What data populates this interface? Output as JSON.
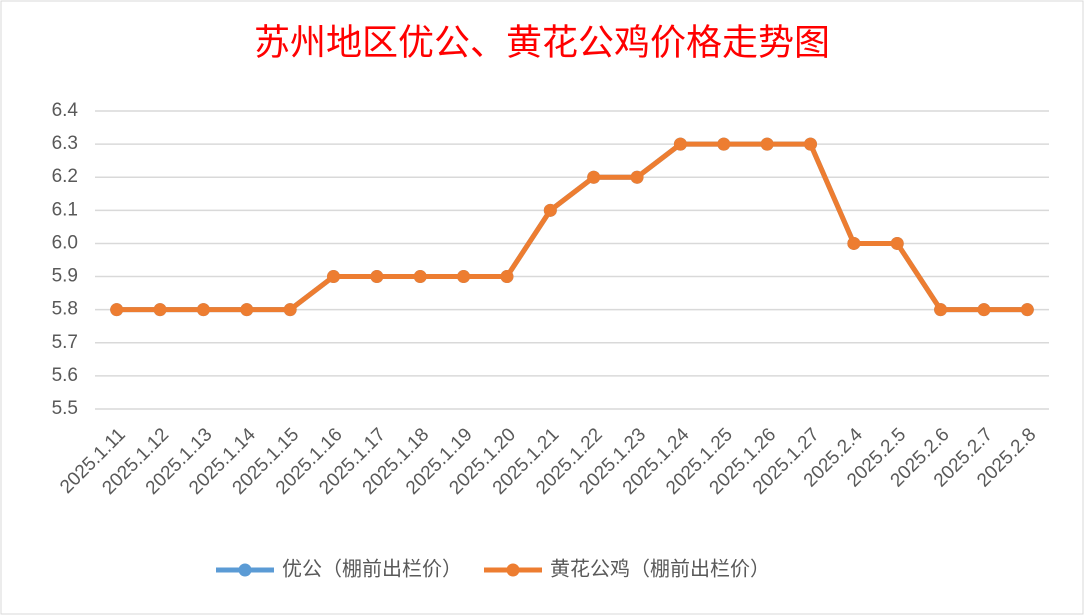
{
  "chart_data": {
    "type": "line",
    "title": "苏州地区优公、黄花公鸡价格走势图",
    "categories": [
      "2025.1.11",
      "2025.1.12",
      "2025.1.13",
      "2025.1.14",
      "2025.1.15",
      "2025.1.16",
      "2025.1.17",
      "2025.1.18",
      "2025.1.19",
      "2025.1.20",
      "2025.1.21",
      "2025.1.22",
      "2025.1.23",
      "2025.1.24",
      "2025.1.25",
      "2025.1.26",
      "2025.1.27",
      "2025.2.4",
      "2025.2.5",
      "2025.2.6",
      "2025.2.7",
      "2025.2.8"
    ],
    "series": [
      {
        "name": "优公（棚前出栏价）",
        "color": "#5b9bd5",
        "values": [
          5.8,
          5.8,
          5.8,
          5.8,
          5.8,
          5.9,
          5.9,
          5.9,
          5.9,
          5.9,
          6.1,
          6.2,
          6.2,
          6.3,
          6.3,
          6.3,
          6.3,
          6.0,
          6.0,
          5.8,
          5.8,
          5.8
        ]
      },
      {
        "name": "黄花公鸡（棚前出栏价）",
        "color": "#ed7d31",
        "values": [
          5.8,
          5.8,
          5.8,
          5.8,
          5.8,
          5.9,
          5.9,
          5.9,
          5.9,
          5.9,
          6.1,
          6.2,
          6.2,
          6.3,
          6.3,
          6.3,
          6.3,
          6.0,
          6.0,
          5.8,
          5.8,
          5.8
        ]
      }
    ],
    "ylim": [
      5.5,
      6.4
    ],
    "yticks": [
      5.5,
      5.6,
      5.7,
      5.8,
      5.9,
      {
        "value": 6.0,
        "label": "6.0"
      },
      6.1,
      6.2,
      6.3,
      6.4
    ],
    "grid": true,
    "legend": "bottom"
  }
}
